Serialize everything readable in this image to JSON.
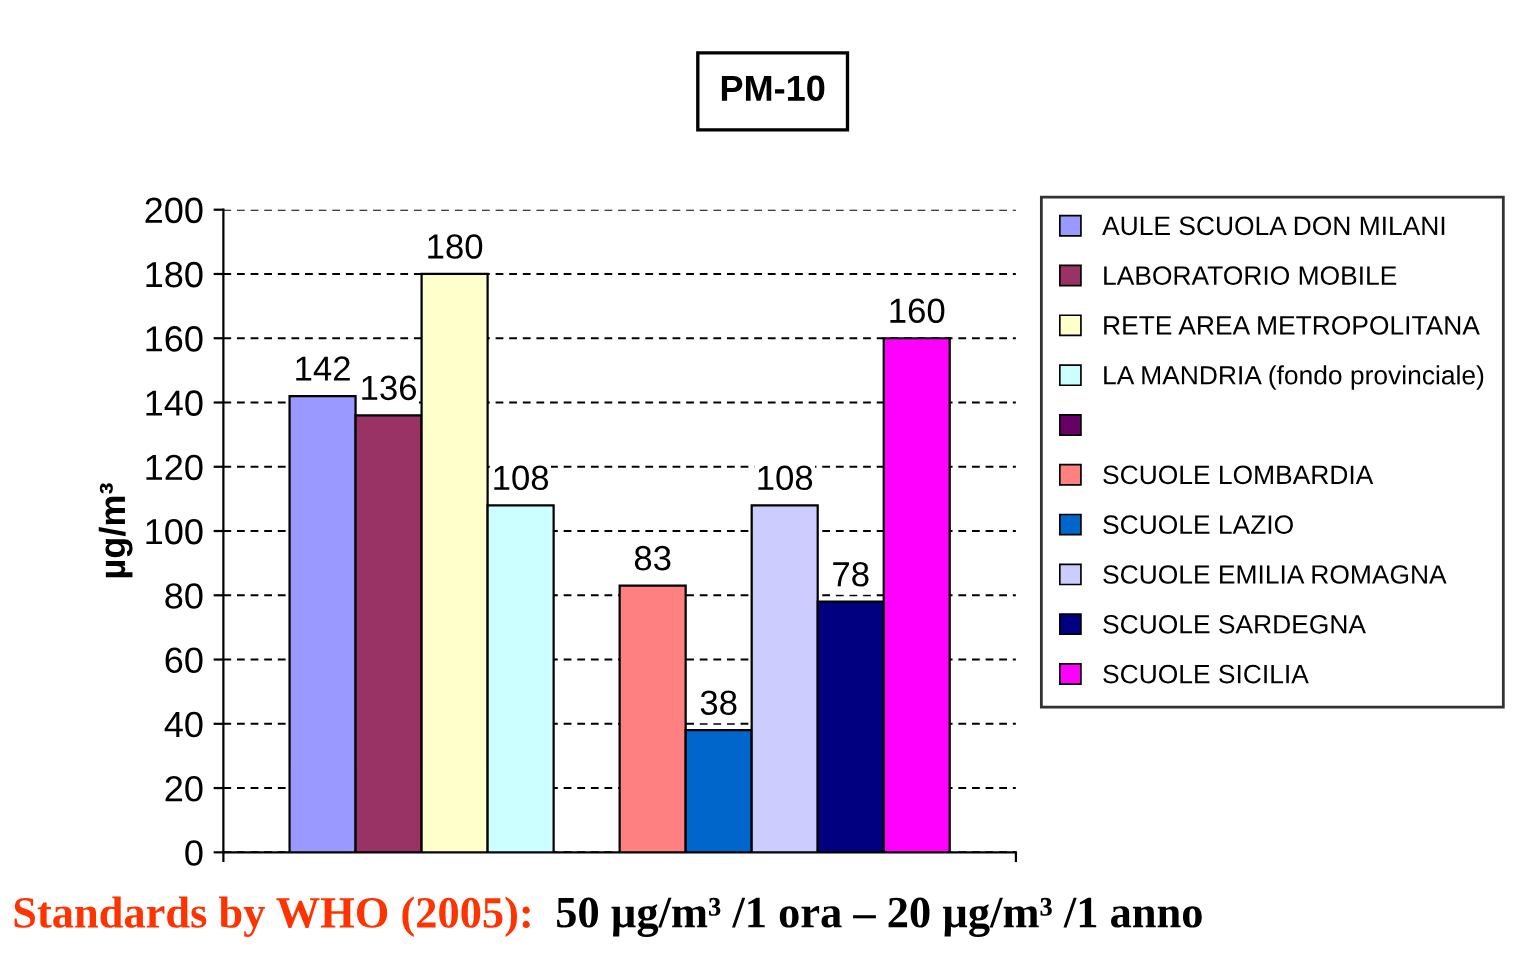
{
  "chart_data": {
    "type": "bar",
    "title": "PM-10",
    "ylabel": "µg/m³",
    "categories": [
      null
    ],
    "series": [
      {
        "name": "AULE SCUOLA DON MILANI",
        "color": "#9999ff",
        "values": [
          142
        ]
      },
      {
        "name": "LABORATORIO MOBILE",
        "color": "#993366",
        "values": [
          136
        ]
      },
      {
        "name": "RETE AREA METROPOLITANA",
        "color": "#ffffcc",
        "values": [
          180
        ]
      },
      {
        "name": "LA MANDRIA (fondo provinciale)",
        "color": "#ccffff",
        "values": [
          108
        ]
      },
      {
        "color": "#660066",
        "values": [
          null
        ]
      },
      {
        "name": "SCUOLE LOMBARDIA",
        "color": "#ff8080",
        "values": [
          83
        ]
      },
      {
        "name": "SCUOLE LAZIO",
        "color": "#0066cc",
        "values": [
          38
        ]
      },
      {
        "name": "SCUOLE EMILIA ROMAGNA",
        "color": "#ccccff",
        "values": [
          108
        ]
      },
      {
        "name": "SCUOLE SARDEGNA",
        "color": "#000080",
        "values": [
          78
        ]
      },
      {
        "name": "SCUOLE SICILIA",
        "color": "#ff00ff",
        "values": [
          160
        ]
      }
    ],
    "ylim": [
      0,
      200
    ],
    "yticks": [
      0,
      20,
      40,
      60,
      80,
      100,
      120,
      140,
      160,
      180,
      200
    ],
    "grid": "y",
    "legend": "right",
    "data_labels": true,
    "annotations": [
      "Standards by WHO (2005):",
      "50 µg/m³ /1 ora – 20 µg/m³ /1 anno"
    ]
  }
}
